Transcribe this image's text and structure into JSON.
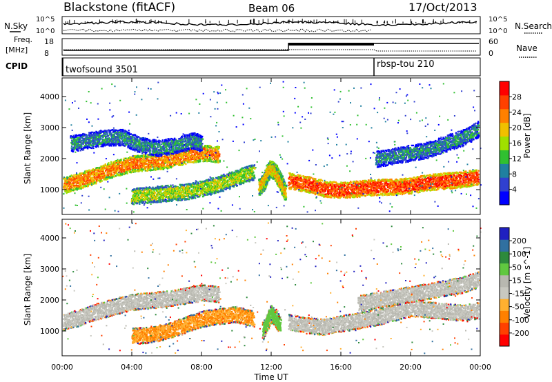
{
  "header": {
    "station": "Blackstone (fitACF)",
    "beam": "Beam 06",
    "date": "17/Oct/2013"
  },
  "top_panels": {
    "nsky_label": "N.Sky",
    "nsky_ticks": [
      "10^5",
      "10^0"
    ],
    "nsearch_label": "N.Search",
    "freq_label": [
      "Freq.",
      "[MHz]"
    ],
    "freq_ticks": [
      "18",
      "8"
    ],
    "nave_label": "Nave",
    "nave_ticks": [
      "60",
      "0"
    ],
    "cpid_label": "CPID",
    "cpid_entries": [
      {
        "name": "twofsound 3501",
        "start_hour": 0
      },
      {
        "name": "rbsp-tou 210",
        "start_hour": 18
      }
    ]
  },
  "colorbars": {
    "power": {
      "label": "Power [dB]",
      "ticks": [
        "4",
        "8",
        "12",
        "16",
        "20",
        "24",
        "28"
      ],
      "colors": [
        "#0000ff",
        "#3040d0",
        "#2080a0",
        "#30c030",
        "#a0e000",
        "#f0c000",
        "#ff8000",
        "#ff4000",
        "#ff0000"
      ]
    },
    "velocity": {
      "label": "Velocity [m s^-1]",
      "ticks": [
        "200",
        "100",
        "50",
        "15",
        "-15",
        "-50",
        "-100",
        "-200"
      ],
      "colors": [
        "#2020c0",
        "#3070a0",
        "#2d8a3c",
        "#60c840",
        "#b8b8b0",
        "#c8c8c0",
        "#ffb030",
        "#ff8000",
        "#ff4000",
        "#ff0000"
      ]
    }
  },
  "axes": {
    "ylabel": "Slant Range [km]",
    "xlabel": "Time UT",
    "y_ticks": [
      "1000",
      "2000",
      "3000",
      "4000"
    ],
    "x_ticks": [
      "00:00",
      "04:00",
      "08:00",
      "12:00",
      "16:00",
      "20:00",
      "00:00"
    ]
  },
  "chart_data": [
    {
      "type": "heatmap",
      "title": "Power",
      "ylabel": "Slant Range [km]",
      "xlabel": "",
      "xlim": [
        0,
        24
      ],
      "ylim": [
        200,
        4600
      ],
      "colorbar_label": "Power [dB]",
      "bands": [
        {
          "t": [
            0,
            1,
            2,
            3,
            4,
            5,
            6,
            7,
            8,
            9
          ],
          "r": [
            1150,
            1300,
            1500,
            1700,
            1850,
            1900,
            1950,
            2100,
            2200,
            2150
          ],
          "power": 24
        },
        {
          "t": [
            0.5,
            1.5,
            2.5,
            3.5,
            4.5,
            5.5,
            6.5,
            7.5,
            8
          ],
          "r": [
            2500,
            2600,
            2700,
            2700,
            2450,
            2350,
            2450,
            2600,
            2500
          ],
          "power": 10
        },
        {
          "t": [
            4,
            5,
            6,
            7,
            8,
            9,
            10,
            11
          ],
          "r": [
            800,
            850,
            900,
            950,
            1050,
            1200,
            1400,
            1600
          ],
          "power": 16
        },
        {
          "t": [
            11.3,
            11.6,
            11.9,
            12.2,
            12.5,
            12.8
          ],
          "r": [
            1100,
            1300,
            1700,
            1600,
            1300,
            900
          ],
          "power": 22
        },
        {
          "t": [
            13,
            14,
            15,
            16,
            17,
            18,
            19,
            20,
            21,
            22,
            23,
            24
          ],
          "r": [
            1300,
            1200,
            1050,
            1000,
            1050,
            1100,
            1100,
            1150,
            1250,
            1300,
            1350,
            1450
          ],
          "power": 28
        },
        {
          "t": [
            18,
            19,
            20,
            21,
            22,
            23,
            24
          ],
          "r": [
            2000,
            2100,
            2200,
            2300,
            2500,
            2700,
            3000
          ],
          "power": 10
        }
      ]
    },
    {
      "type": "heatmap",
      "title": "Velocity",
      "ylabel": "Slant Range [km]",
      "xlabel": "Time UT",
      "xlim": [
        0,
        24
      ],
      "ylim": [
        200,
        4600
      ],
      "colorbar_label": "Velocity [m s^-1]",
      "bands": [
        {
          "t": [
            0,
            1,
            2,
            3,
            4,
            5,
            6,
            7,
            8,
            9
          ],
          "r": [
            1300,
            1450,
            1650,
            1800,
            1950,
            2000,
            2050,
            2150,
            2250,
            2200
          ],
          "velocity": 0
        },
        {
          "t": [
            4,
            5,
            6,
            7,
            8,
            9,
            10,
            11
          ],
          "r": [
            850,
            900,
            1000,
            1200,
            1400,
            1500,
            1550,
            1400
          ],
          "velocity": -60
        },
        {
          "t": [
            11.5,
            12,
            12.5
          ],
          "r": [
            1000,
            1600,
            1200
          ],
          "velocity": 40
        },
        {
          "t": [
            13,
            14,
            15,
            16,
            17,
            18,
            19,
            20,
            21,
            22,
            23,
            24
          ],
          "r": [
            1300,
            1200,
            1150,
            1250,
            1350,
            1450,
            1600,
            1750,
            1700,
            1650,
            1600,
            1700
          ],
          "velocity": 0
        },
        {
          "t": [
            17,
            18,
            19,
            20,
            21,
            22,
            23,
            24
          ],
          "r": [
            1900,
            2000,
            2100,
            2200,
            2300,
            2400,
            2500,
            2700
          ],
          "velocity": 0
        }
      ]
    }
  ]
}
